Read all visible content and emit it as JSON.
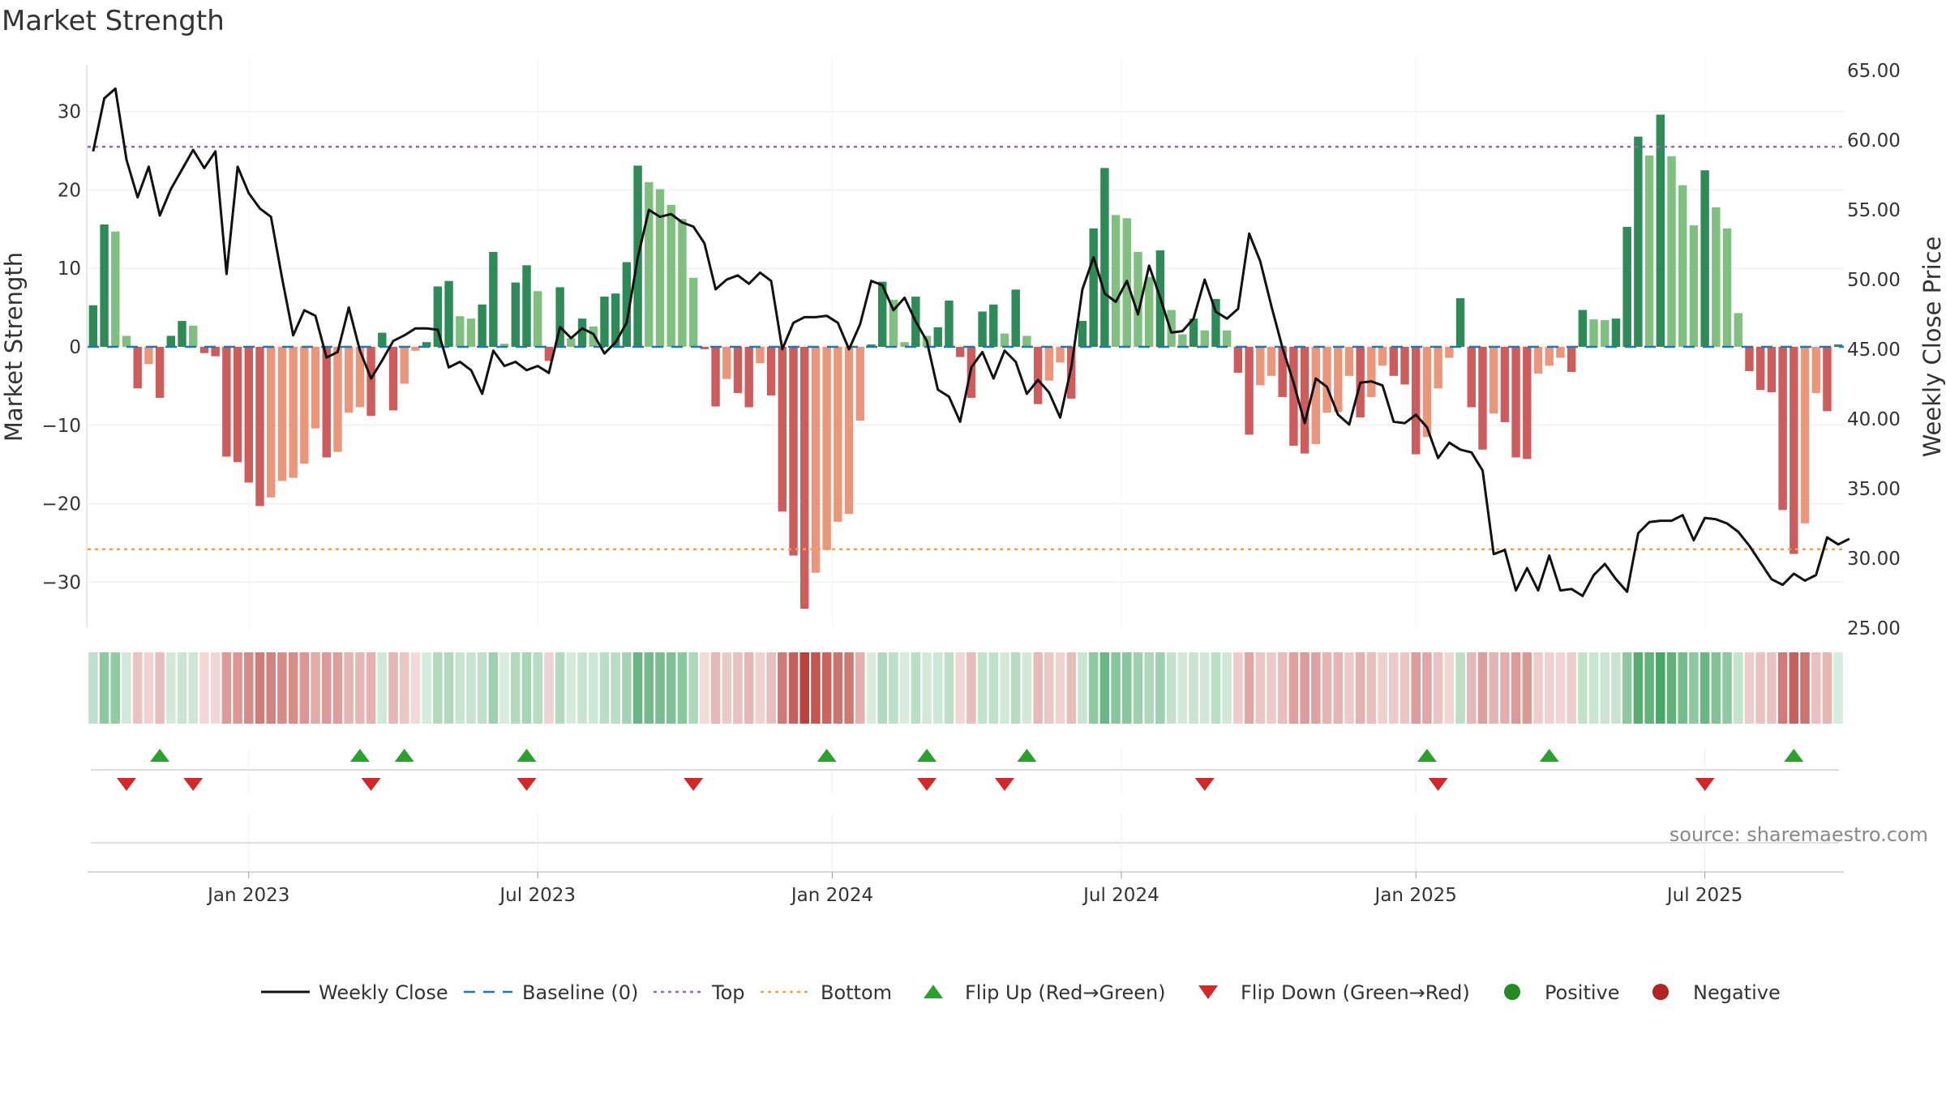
{
  "title": "Market Strength",
  "source": "source: sharemaestro.com",
  "colors": {
    "strong_green": "#2e8b57",
    "light_green": "#80bf80",
    "strong_red": "#cd5c5c",
    "light_red": "#e9967a",
    "price_line": "#111111",
    "baseline": "#1f77b4",
    "top_line": "#9467bd",
    "bottom_line": "#f0a050",
    "flip_up": "#2ca02c",
    "flip_down": "#d62728",
    "positive": "#228b22",
    "negative": "#b22222"
  },
  "chart_data": {
    "type": "bar",
    "ylabel_left": "Market Strength",
    "ylabel_right": "Weekly Close Price",
    "ylim_left": [
      -36,
      36
    ],
    "ylim_right": [
      25,
      65
    ],
    "yticks_left": [
      {
        "v": 30,
        "label": "30"
      },
      {
        "v": 20,
        "label": "20"
      },
      {
        "v": 10,
        "label": "10"
      },
      {
        "v": 0,
        "label": "0"
      },
      {
        "v": -10,
        "label": "−10"
      },
      {
        "v": -20,
        "label": "−20"
      },
      {
        "v": -30,
        "label": "−30"
      }
    ],
    "yticks_right": [
      "65.00",
      "60.00",
      "55.00",
      "50.00",
      "45.00",
      "40.00",
      "35.00",
      "30.00",
      "25.00"
    ],
    "xticks": [
      {
        "i": 14,
        "label": "Jan 2023"
      },
      {
        "i": 40,
        "label": "Jul 2023"
      },
      {
        "i": 66.5,
        "label": "Jan 2024"
      },
      {
        "i": 92.5,
        "label": "Jul 2024"
      },
      {
        "i": 119,
        "label": "Jan 2025"
      },
      {
        "i": 145,
        "label": "Jul 2025"
      }
    ],
    "top_level": 25.5,
    "bottom_level": -25.8,
    "strength": [
      5.3,
      15.6,
      14.7,
      1.4,
      -5.3,
      -2.2,
      -6.5,
      1.4,
      3.3,
      2.7,
      -0.8,
      -1.2,
      -14,
      -14.7,
      -17.3,
      -20.3,
      -19.2,
      -17.1,
      -16.7,
      -14.9,
      -10.4,
      -14.1,
      -13.4,
      -8.4,
      -7.7,
      -8.8,
      1.8,
      -8.1,
      -4.7,
      -0.5,
      0.6,
      7.7,
      8.4,
      3.9,
      3.6,
      5.4,
      12.1,
      0.4,
      8.2,
      10.4,
      7.1,
      -1.8,
      7.6,
      1.1,
      3.6,
      2.6,
      6.4,
      6.8,
      10.8,
      23.1,
      21,
      20.1,
      18.1,
      16.3,
      8.8,
      -0.3,
      -7.6,
      -4.1,
      -5.9,
      -7.7,
      -2.1,
      -6.2,
      -21,
      -26.6,
      -33.4,
      -28.8,
      -25.9,
      -22.3,
      -21.3,
      -9.4,
      0.3,
      8.3,
      6,
      0.6,
      6.4,
      1.4,
      2.5,
      5.9,
      -1.3,
      -6.5,
      4.5,
      5.4,
      1.7,
      7.3,
      1.4,
      -7.3,
      -4.3,
      -2,
      -6.6,
      3.3,
      15.1,
      22.8,
      16.8,
      16.4,
      12.1,
      8.9,
      12.3,
      4.7,
      1.6,
      3.6,
      2.1,
      6.1,
      2.1,
      -3.3,
      -11.2,
      -4.9,
      -3.7,
      -6.4,
      -12.6,
      -13.6,
      -12.4,
      -8.4,
      -8.3,
      -3.7,
      -9,
      -6.4,
      -2.4,
      -3.7,
      -4.8,
      -13.7,
      -11.5,
      -5.3,
      -1.4,
      6.2,
      -7.7,
      -13.1,
      -8.5,
      -9.6,
      -14.1,
      -14.3,
      -3.4,
      -2.4,
      -1.4,
      -3.2,
      4.7,
      3.5,
      3.4,
      3.6,
      15.3,
      26.8,
      24.4,
      29.6,
      24.3,
      20.6,
      15.5,
      22.5,
      17.8,
      15.1,
      4.3,
      -3.1,
      -5.5,
      -5.8,
      -20.8,
      -26.4,
      -22.5,
      -5.9,
      -8.2,
      0.3
    ],
    "price": [
      59.2,
      63,
      63.7,
      58.6,
      55.9,
      58.1,
      54.6,
      56.5,
      57.9,
      59.3,
      58,
      59.2,
      50.4,
      58.1,
      56.2,
      55.1,
      54.5,
      50.1,
      46,
      47.8,
      47.4,
      44.4,
      44.8,
      48,
      44.9,
      42.9,
      44.2,
      45.6,
      46,
      46.5,
      46.5,
      46.4,
      43.7,
      44.1,
      43.5,
      41.8,
      44.9,
      43.8,
      44.1,
      43.5,
      43.8,
      43.3,
      46.6,
      45.8,
      46.5,
      46.1,
      44.7,
      45.5,
      46.9,
      51.6,
      55,
      54.5,
      54.7,
      54.1,
      53.8,
      52.6,
      49.3,
      50,
      50.3,
      49.7,
      50.5,
      49.9,
      45,
      46.9,
      47.3,
      47.3,
      47.4,
      46.9,
      45,
      46.8,
      49.9,
      49.6,
      47.8,
      48.7,
      47,
      45.6,
      42.1,
      41.6,
      39.8,
      43.7,
      44.8,
      42.9,
      44.9,
      44.1,
      41.8,
      42.8,
      41.9,
      40.1,
      43.7,
      49.3,
      51.6,
      49,
      48.4,
      49.9,
      47.5,
      51,
      48.7,
      46.2,
      46.3,
      47.2,
      50,
      47.7,
      47.2,
      47.9,
      53.3,
      51.3,
      48.1,
      45.1,
      42.6,
      39.7,
      42.9,
      42.3,
      40.3,
      39.6,
      42.6,
      42.7,
      42.4,
      39.8,
      39.7,
      40.3,
      39.4,
      37.2,
      38.3,
      37.8,
      37.6,
      36.3,
      30.3,
      30.6,
      27.7,
      29.3,
      27.7,
      30.2,
      27.7,
      27.8,
      27.3,
      28.8,
      29.6,
      28.5,
      27.6,
      31.8,
      32.6,
      32.7,
      32.7,
      33.1,
      31.3,
      32.9,
      32.8,
      32.5,
      31.9,
      30.9,
      29.7,
      28.5,
      28.1,
      28.9,
      28.4,
      28.8,
      31.5,
      31,
      31.4
    ],
    "flip_up_idx": [
      6,
      24,
      28,
      39,
      66,
      75,
      84,
      120,
      131,
      153
    ],
    "flip_down_idx": [
      3,
      9,
      25,
      39,
      54,
      75,
      82,
      100,
      121,
      145
    ],
    "legend": [
      "Weekly Close",
      "Baseline (0)",
      "Top",
      "Bottom",
      "Flip Up (Red→Green)",
      "Flip Down (Green→Red)",
      "Positive",
      "Negative"
    ]
  }
}
